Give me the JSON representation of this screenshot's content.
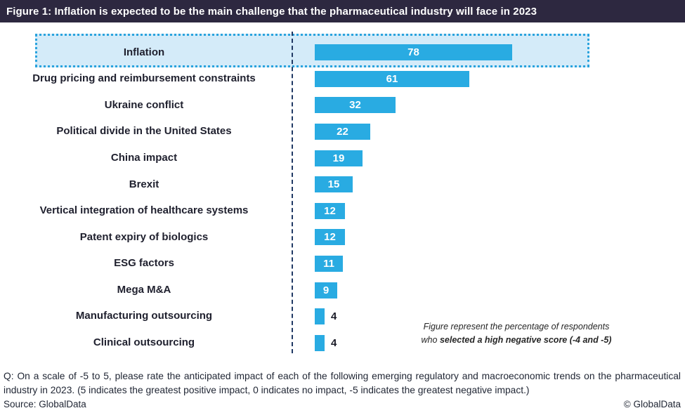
{
  "header": {
    "title": "Figure 1: Inflation is expected to be the main challenge that the pharmaceutical industry will face in 2023"
  },
  "chart_data": {
    "type": "bar",
    "orientation": "horizontal",
    "title": "Figure 1: Inflation is expected to be the main challenge that the pharmaceutical industry will face in 2023",
    "categories": [
      "Inflation",
      "Drug pricing and reimbursement constraints",
      "Ukraine conflict",
      "Political divide in the United States",
      "China impact",
      "Brexit",
      "Vertical integration of healthcare systems",
      "Patent expiry of biologics",
      "ESG factors",
      "Mega M&A",
      "Manufacturing outsourcing",
      "Clinical outsourcing"
    ],
    "values": [
      78,
      61,
      32,
      22,
      19,
      15,
      12,
      12,
      11,
      9,
      4,
      4
    ],
    "highlighted_category": "Inflation",
    "bar_color": "#29abe2",
    "highlight_fill_color": "#d4ebf9",
    "highlight_border_color": "#2aa3dd",
    "axis_line_color": "#1f3864",
    "xlim": [
      0,
      100
    ],
    "grid": false,
    "legend": false,
    "value_labels": "shown on each bar",
    "annotation": "Figure represent the percentage of respondents who selected a high negative score (-4 and -5)"
  },
  "note": {
    "line1": "Figure represent the percentage of respondents",
    "line2_regular": "who ",
    "line2_bold": "selected a high negative score (-4 and -5)"
  },
  "footer": {
    "q_text": "Q: On a scale of -5 to 5, please rate the anticipated impact of each of the following emerging regulatory and macroeconomic trends on the pharmaceutical industry in 2023. (5 indicates the greatest positive impact, 0 indicates no impact, -5 indicates the greatest negative impact.)",
    "source": "Source: GlobalData",
    "copyright": "© GlobalData"
  }
}
